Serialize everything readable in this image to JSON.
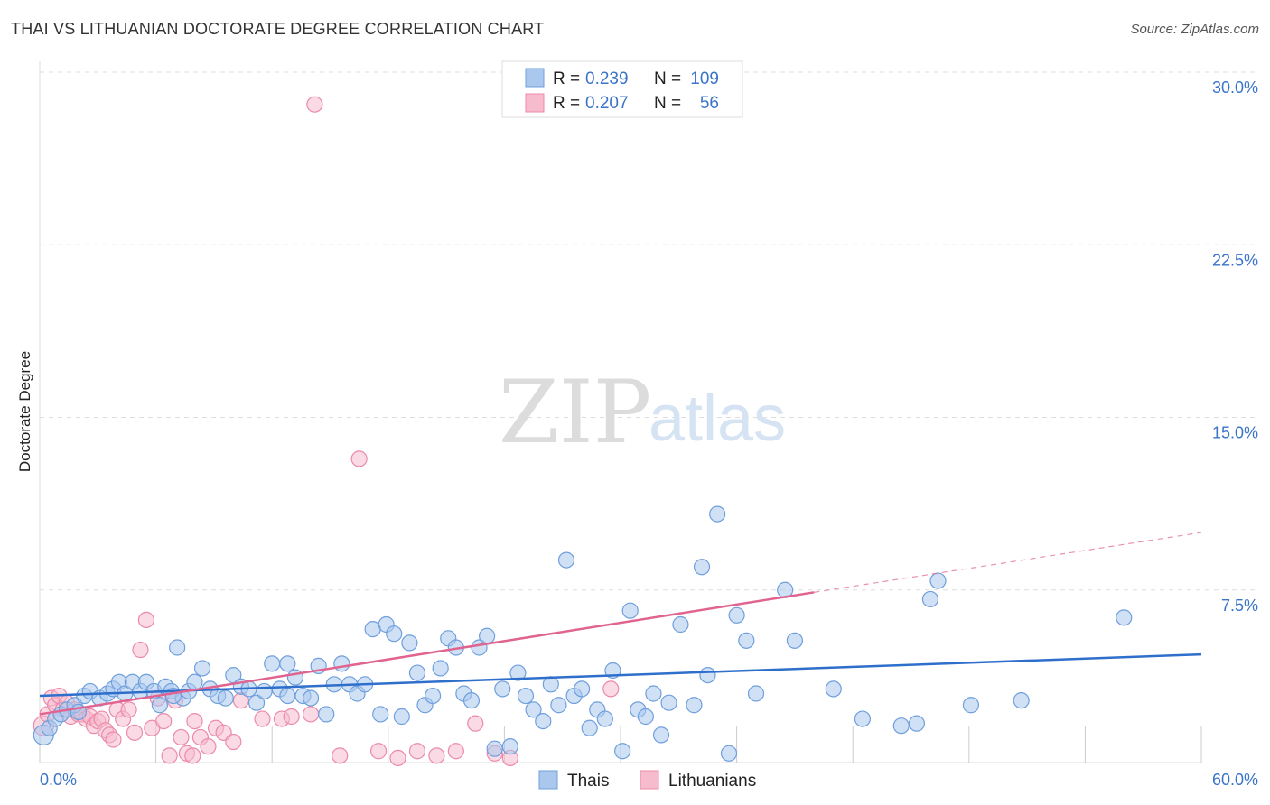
{
  "title": "THAI VS LITHUANIAN DOCTORATE DEGREE CORRELATION CHART",
  "source": "Source: ZipAtlas.com",
  "watermark": {
    "zip": "ZIP",
    "atlas": "atlas"
  },
  "colors": {
    "blue_fill": "#aac8ee",
    "blue_stroke": "#6f9fdc",
    "blue_line": "#2f6fcc",
    "pink_fill": "#f6bccd",
    "pink_stroke": "#ec8aaa",
    "pink_line": "#e0648f",
    "grid": "#dddddd",
    "tick_text": "#3a74c8"
  },
  "legend": {
    "row1": {
      "r_label": "R =",
      "r_value": "0.239",
      "n_label": "N =",
      "n_value": "109"
    },
    "row2": {
      "r_label": "R =",
      "r_value": "0.207",
      "n_label": "N =",
      "n_value": "56"
    }
  },
  "chart_data": {
    "type": "scatter",
    "title": "THAI VS LITHUANIAN DOCTORATE DEGREE CORRELATION CHART",
    "xlabel": "",
    "ylabel": "Doctorate Degree",
    "xlim": [
      0,
      60
    ],
    "ylim": [
      0,
      30
    ],
    "x_tick_labels": [
      "0.0%",
      "60.0%"
    ],
    "y_ticks": [
      7.5,
      15.0,
      22.5,
      30.0
    ],
    "y_tick_labels": [
      "7.5%",
      "15.0%",
      "22.5%",
      "30.0%"
    ],
    "grid": true,
    "legend_position": "top-center",
    "series": [
      {
        "name": "Thais",
        "points": [
          [
            0.2,
            1.2
          ],
          [
            0.5,
            1.5
          ],
          [
            0.8,
            1.9
          ],
          [
            1.1,
            2.1
          ],
          [
            1.4,
            2.3
          ],
          [
            1.8,
            2.5
          ],
          [
            2.0,
            2.2
          ],
          [
            2.3,
            2.9
          ],
          [
            2.6,
            3.1
          ],
          [
            3.1,
            2.8
          ],
          [
            3.5,
            3.0
          ],
          [
            3.8,
            3.2
          ],
          [
            4.1,
            3.5
          ],
          [
            4.4,
            3.0
          ],
          [
            4.8,
            3.5
          ],
          [
            5.2,
            3.1
          ],
          [
            5.5,
            3.5
          ],
          [
            5.9,
            3.1
          ],
          [
            6.2,
            2.5
          ],
          [
            6.5,
            3.3
          ],
          [
            6.8,
            3.1
          ],
          [
            7.1,
            5.0
          ],
          [
            7.4,
            2.8
          ],
          [
            7.7,
            3.1
          ],
          [
            8.0,
            3.5
          ],
          [
            8.4,
            4.1
          ],
          [
            8.8,
            3.2
          ],
          [
            9.2,
            2.9
          ],
          [
            9.6,
            2.8
          ],
          [
            10.0,
            3.8
          ],
          [
            10.4,
            3.3
          ],
          [
            10.8,
            3.2
          ],
          [
            11.2,
            2.6
          ],
          [
            11.6,
            3.1
          ],
          [
            12.0,
            4.3
          ],
          [
            12.4,
            3.2
          ],
          [
            12.8,
            4.3
          ],
          [
            13.2,
            3.7
          ],
          [
            13.6,
            2.9
          ],
          [
            14.0,
            2.8
          ],
          [
            14.4,
            4.2
          ],
          [
            14.8,
            2.1
          ],
          [
            15.2,
            3.4
          ],
          [
            15.6,
            4.3
          ],
          [
            16.0,
            3.4
          ],
          [
            16.4,
            3.0
          ],
          [
            16.8,
            3.4
          ],
          [
            17.2,
            5.8
          ],
          [
            17.6,
            2.1
          ],
          [
            17.9,
            6.0
          ],
          [
            18.3,
            5.6
          ],
          [
            18.7,
            2.0
          ],
          [
            19.1,
            5.2
          ],
          [
            19.5,
            3.9
          ],
          [
            19.9,
            2.5
          ],
          [
            20.3,
            2.9
          ],
          [
            20.7,
            4.1
          ],
          [
            21.1,
            5.4
          ],
          [
            21.5,
            5.0
          ],
          [
            21.9,
            3.0
          ],
          [
            22.3,
            2.7
          ],
          [
            22.7,
            5.0
          ],
          [
            23.1,
            5.5
          ],
          [
            23.5,
            0.6
          ],
          [
            23.9,
            3.2
          ],
          [
            24.3,
            0.7
          ],
          [
            24.7,
            3.9
          ],
          [
            25.1,
            2.9
          ],
          [
            25.5,
            2.3
          ],
          [
            26.0,
            1.8
          ],
          [
            26.4,
            3.4
          ],
          [
            26.8,
            2.5
          ],
          [
            27.2,
            8.8
          ],
          [
            27.6,
            2.9
          ],
          [
            28.0,
            3.2
          ],
          [
            28.4,
            1.5
          ],
          [
            28.8,
            2.3
          ],
          [
            29.2,
            1.9
          ],
          [
            29.6,
            4.0
          ],
          [
            30.1,
            0.5
          ],
          [
            30.5,
            6.6
          ],
          [
            30.9,
            2.3
          ],
          [
            31.3,
            2.0
          ],
          [
            31.7,
            3.0
          ],
          [
            32.1,
            1.2
          ],
          [
            32.5,
            2.6
          ],
          [
            33.1,
            6.0
          ],
          [
            33.8,
            2.5
          ],
          [
            34.5,
            3.8
          ],
          [
            35.0,
            10.8
          ],
          [
            35.6,
            0.4
          ],
          [
            36.0,
            6.4
          ],
          [
            36.5,
            5.3
          ],
          [
            37.0,
            3.0
          ],
          [
            38.5,
            7.5
          ],
          [
            39.0,
            5.3
          ],
          [
            46.0,
            7.1
          ],
          [
            46.4,
            7.9
          ],
          [
            56.0,
            6.3
          ],
          [
            41.0,
            3.2
          ],
          [
            42.5,
            1.9
          ],
          [
            44.5,
            1.6
          ],
          [
            45.3,
            1.7
          ],
          [
            48.1,
            2.5
          ],
          [
            50.7,
            2.7
          ],
          [
            34.2,
            8.5
          ],
          [
            12.8,
            2.9
          ],
          [
            6.9,
            2.9
          ]
        ],
        "trend": {
          "x0": 0,
          "y0": 2.9,
          "x1": 60,
          "y1": 4.7
        }
      },
      {
        "name": "Lithuanians",
        "points": [
          [
            0.2,
            1.6
          ],
          [
            0.4,
            2.1
          ],
          [
            0.6,
            2.8
          ],
          [
            0.8,
            2.5
          ],
          [
            1.0,
            2.9
          ],
          [
            1.2,
            2.3
          ],
          [
            1.4,
            2.6
          ],
          [
            1.6,
            2.0
          ],
          [
            1.8,
            2.3
          ],
          [
            2.0,
            2.1
          ],
          [
            2.2,
            2.1
          ],
          [
            2.4,
            1.9
          ],
          [
            2.6,
            2.0
          ],
          [
            2.8,
            1.6
          ],
          [
            3.0,
            1.8
          ],
          [
            3.2,
            1.9
          ],
          [
            3.4,
            1.4
          ],
          [
            3.6,
            1.2
          ],
          [
            3.8,
            1.0
          ],
          [
            4.0,
            2.3
          ],
          [
            4.3,
            1.9
          ],
          [
            4.6,
            2.3
          ],
          [
            4.9,
            1.3
          ],
          [
            5.2,
            4.9
          ],
          [
            5.5,
            6.2
          ],
          [
            5.8,
            1.5
          ],
          [
            6.1,
            2.8
          ],
          [
            6.4,
            1.8
          ],
          [
            6.7,
            0.3
          ],
          [
            7.0,
            2.7
          ],
          [
            7.3,
            1.1
          ],
          [
            7.6,
            0.4
          ],
          [
            7.9,
            0.3
          ],
          [
            8.3,
            1.1
          ],
          [
            8.7,
            0.7
          ],
          [
            9.1,
            1.5
          ],
          [
            9.5,
            1.3
          ],
          [
            10.0,
            0.9
          ],
          [
            10.4,
            2.7
          ],
          [
            11.5,
            1.9
          ],
          [
            12.5,
            1.9
          ],
          [
            13.0,
            2.0
          ],
          [
            14.0,
            2.1
          ],
          [
            15.5,
            0.3
          ],
          [
            16.5,
            13.2
          ],
          [
            17.5,
            0.5
          ],
          [
            18.5,
            0.2
          ],
          [
            19.5,
            0.5
          ],
          [
            20.5,
            0.3
          ],
          [
            21.5,
            0.5
          ],
          [
            22.5,
            1.7
          ],
          [
            23.5,
            0.4
          ],
          [
            24.3,
            0.2
          ],
          [
            29.5,
            3.2
          ],
          [
            14.2,
            28.6
          ],
          [
            8.0,
            1.8
          ]
        ],
        "trend": {
          "x0": 0,
          "y0": 2.1,
          "x1": 40,
          "y1": 7.4
        },
        "trend_dashed": {
          "x0": 40,
          "y0": 7.4,
          "x1": 60,
          "y1": 10.0
        }
      }
    ]
  },
  "bottom_legend": [
    {
      "label": "Thais",
      "color_key": "blue"
    },
    {
      "label": "Lithuanians",
      "color_key": "pink"
    }
  ]
}
